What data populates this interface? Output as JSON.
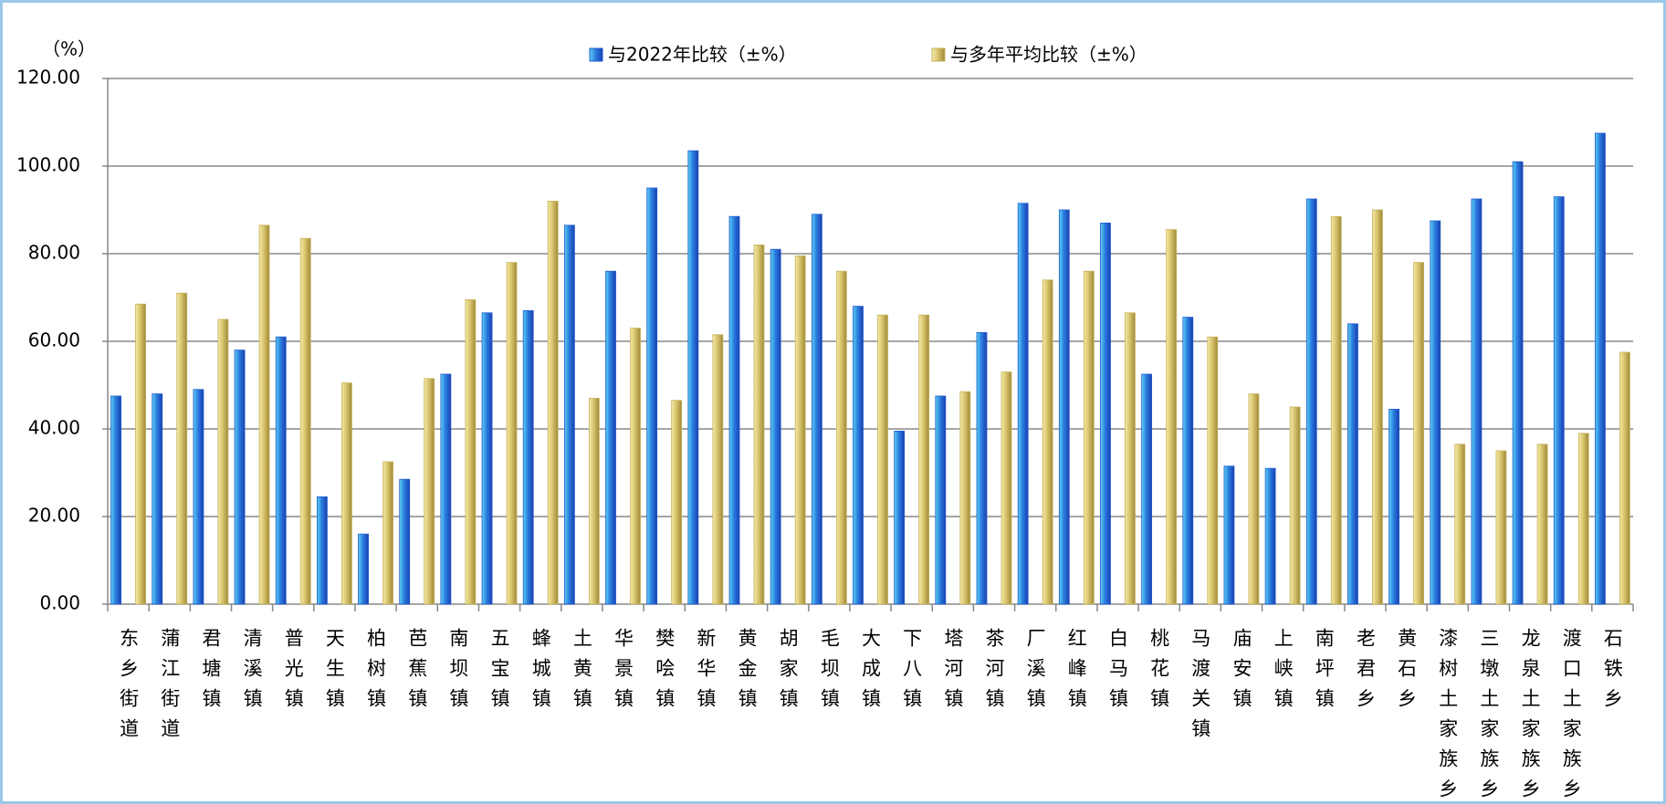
{
  "chart_data": {
    "type": "bar",
    "y_unit_label": "（%）",
    "categories": [
      "东乡街道",
      "蒲江街道",
      "君塘镇",
      "清溪镇",
      "普光镇",
      "天生镇",
      "柏树镇",
      "芭蕉镇",
      "南坝镇",
      "五宝镇",
      "蜂城镇",
      "土黄镇",
      "华景镇",
      "樊哙镇",
      "新华镇",
      "黄金镇",
      "胡家镇",
      "毛坝镇",
      "大成镇",
      "下八镇",
      "塔河镇",
      "茶河镇",
      "厂溪镇",
      "红峰镇",
      "白马镇",
      "桃花镇",
      "马渡关镇",
      "庙安镇",
      "上峡镇",
      "南坪镇",
      "老君乡",
      "黄石乡",
      "漆树土家族乡",
      "三墩土家族乡",
      "龙泉土家族乡",
      "渡口土家族乡",
      "石铁乡"
    ],
    "series": [
      {
        "name": "与2022年比较（±%）",
        "color": "#1f5bd1",
        "values": [
          47.5,
          48,
          49,
          58,
          61,
          24.5,
          16,
          28.5,
          52.5,
          66.5,
          67,
          86.5,
          76,
          95,
          103.5,
          88.5,
          81,
          89,
          68,
          39.5,
          47.5,
          62,
          91.5,
          90,
          87,
          52.5,
          65.5,
          31.5,
          31,
          92.5,
          64,
          44.5,
          87.5,
          92.5,
          101,
          93,
          107.5
        ]
      },
      {
        "name": "与多年平均比较（±%）",
        "color": "#c8b25a",
        "values": [
          68.5,
          71,
          65,
          86.5,
          83.5,
          50.5,
          32.5,
          51.5,
          69.5,
          78,
          92,
          47,
          63,
          46.5,
          61.5,
          82,
          79.5,
          76,
          66,
          66,
          48.5,
          53,
          74,
          76,
          66.5,
          85.5,
          61,
          48,
          45,
          88.5,
          90,
          78,
          36.5,
          35,
          36.5,
          39,
          57.5
        ]
      }
    ],
    "ylim": [
      0,
      120
    ],
    "yticks": [
      {
        "value": 0,
        "label": "0.00"
      },
      {
        "value": 20,
        "label": "20.00"
      },
      {
        "value": 40,
        "label": "40.00"
      },
      {
        "value": 60,
        "label": "60.00"
      },
      {
        "value": 80,
        "label": "80.00"
      },
      {
        "value": 100,
        "label": "100.00"
      },
      {
        "value": 120,
        "label": "120.00"
      }
    ],
    "grid": true,
    "legend": "top"
  }
}
